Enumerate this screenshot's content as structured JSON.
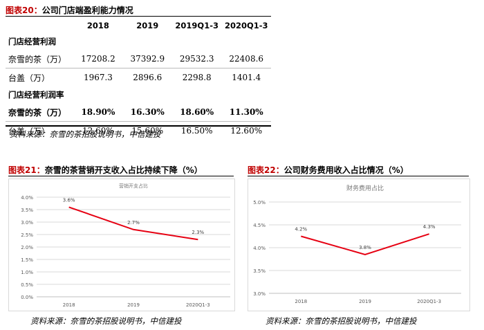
{
  "table_figure": {
    "label": "图表20：",
    "title": "公司门店端盈利能力情况",
    "headers": [
      "",
      "2018",
      "2019",
      "2019Q1-3",
      "2020Q1-3"
    ],
    "sections": [
      {
        "heading": "门店经营利润",
        "rows": [
          {
            "label": "奈雪的茶（万）",
            "values": [
              "17208.2",
              "37392.9",
              "29532.3",
              "22408.6"
            ],
            "bold": false
          },
          {
            "label": "台盖（万）",
            "values": [
              "1967.3",
              "2896.6",
              "2298.8",
              "1401.4"
            ],
            "bold": false
          }
        ]
      },
      {
        "heading": "门店经营利润率",
        "rows": [
          {
            "label": "奈雪的茶（万）",
            "values": [
              "18.90%",
              "16.30%",
              "18.60%",
              "11.30%"
            ],
            "bold": true
          },
          {
            "label": "台盖（万）",
            "values": [
              "12.60%",
              "15.60%",
              "16.50%",
              "12.60%"
            ],
            "bold": false
          }
        ]
      }
    ],
    "source": "资料来源：奈雪的茶招股说明书，中信建投"
  },
  "figure21": {
    "label": "图表21：",
    "title": "奈雪的茶营销开支收入占比持续下降（%）",
    "source": "资料来源：奈雪的茶招股说明书，中信建投"
  },
  "figure22": {
    "label": "图表22：",
    "title": "公司财务费用收入占比情况（%）",
    "source": "资料来源：奈雪的茶招股说明书，中信建投"
  },
  "chart_data": [
    {
      "type": "line",
      "title": "营销开支占比",
      "categories": [
        "2018",
        "2019",
        "2020Q1-3"
      ],
      "series": [
        {
          "values": [
            3.6,
            2.7,
            2.3
          ],
          "labels": [
            "3.6%",
            "2.7%",
            "2.3%"
          ],
          "color": "#e60012"
        }
      ],
      "ylim": [
        0,
        4.0
      ],
      "yticks": [
        "0.0%",
        "0.5%",
        "1.0%",
        "1.5%",
        "2.0%",
        "2.5%",
        "3.0%",
        "3.5%",
        "4.0%"
      ],
      "grid": true
    },
    {
      "type": "line",
      "title": "财务费用占比",
      "categories": [
        "2018",
        "2019",
        "2020Q1-3"
      ],
      "series": [
        {
          "values": [
            4.25,
            3.85,
            4.3
          ],
          "labels": [
            "4.2%",
            "3.8%",
            "4.3%"
          ],
          "color": "#e60012"
        }
      ],
      "ylim": [
        3.0,
        5.0
      ],
      "yticks": [
        "3.0%",
        "3.5%",
        "4.0%",
        "4.5%",
        "5.0%"
      ],
      "grid": true
    }
  ]
}
